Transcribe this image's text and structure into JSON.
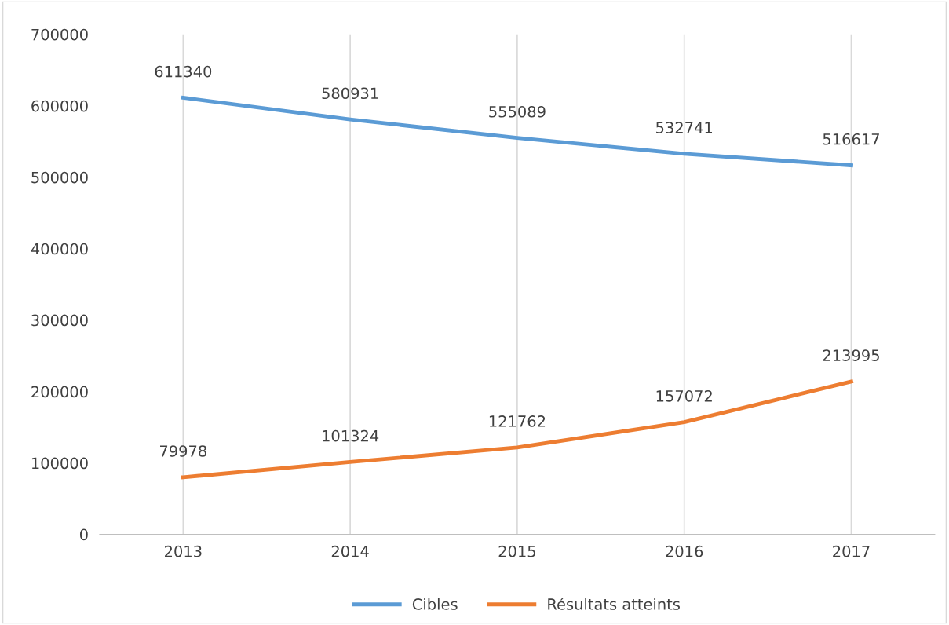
{
  "chart_data": {
    "type": "line",
    "categories": [
      "2013",
      "2014",
      "2015",
      "2016",
      "2017"
    ],
    "series": [
      {
        "name": "Cibles",
        "color": "#5b9bd5",
        "values": [
          611340,
          580931,
          555089,
          532741,
          516617
        ]
      },
      {
        "name": "Résultats atteints",
        "color": "#ed7d31",
        "values": [
          79978,
          101324,
          121762,
          157072,
          213995
        ]
      }
    ],
    "ylim": [
      0,
      700000
    ],
    "yticks": [
      0,
      100000,
      200000,
      300000,
      400000,
      500000,
      600000,
      700000
    ],
    "grid": "x",
    "legend": "bottom",
    "data_labels": true,
    "marker": "none",
    "line_style": "solid"
  }
}
